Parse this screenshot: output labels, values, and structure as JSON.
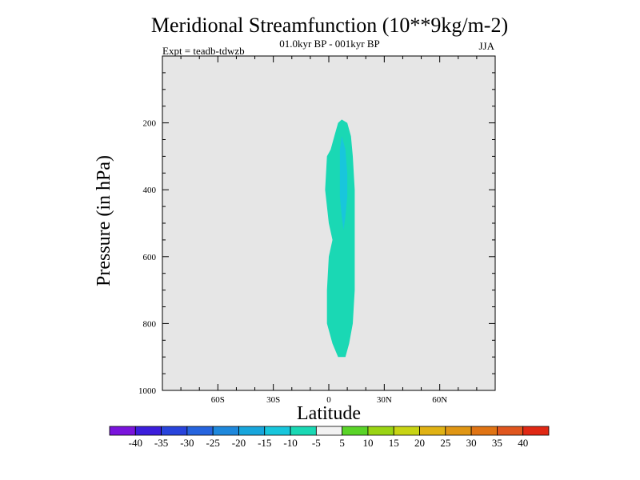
{
  "chart_data": {
    "type": "contour",
    "title": "Meridional Streamfunction (10**9kg/m-2)",
    "subtitle": "01.0kyr BP - 001kyr BP",
    "experiment": "Expt = teadb-tdwzb",
    "season": "JJA",
    "xlabel": "Latitude",
    "ylabel": "Pressure (in hPa)",
    "xlim": [
      -90,
      90
    ],
    "ylim": [
      0,
      1000
    ],
    "y_inverted": true,
    "x_ticks": [
      {
        "value": -60,
        "label": "60S"
      },
      {
        "value": -30,
        "label": "30S"
      },
      {
        "value": 0,
        "label": "0"
      },
      {
        "value": 30,
        "label": "30N"
      },
      {
        "value": 60,
        "label": "60N"
      }
    ],
    "y_ticks": [
      {
        "value": 200,
        "label": "200"
      },
      {
        "value": 400,
        "label": "400"
      },
      {
        "value": 600,
        "label": "600"
      },
      {
        "value": 800,
        "label": "800"
      },
      {
        "value": 1000,
        "label": "1000"
      }
    ],
    "background_color": "#e6e6e6",
    "regions": [
      {
        "name": "band-neg5-to-neg10",
        "level_range": [
          -10,
          -5
        ],
        "color": "#1ad8b4",
        "outline": [
          [
            7,
            190
          ],
          [
            10,
            200
          ],
          [
            12,
            240
          ],
          [
            13,
            300
          ],
          [
            14,
            400
          ],
          [
            14,
            500
          ],
          [
            14,
            600
          ],
          [
            14,
            700
          ],
          [
            13,
            800
          ],
          [
            11,
            860
          ],
          [
            9,
            900
          ],
          [
            5,
            900
          ],
          [
            2,
            860
          ],
          [
            -1,
            800
          ],
          [
            -1,
            700
          ],
          [
            0,
            600
          ],
          [
            2,
            550
          ],
          [
            0,
            500
          ],
          [
            -1,
            450
          ],
          [
            -2,
            400
          ],
          [
            -1,
            300
          ],
          [
            1,
            280
          ],
          [
            3,
            240
          ],
          [
            5,
            200
          ]
        ]
      },
      {
        "name": "band-neg10-to-neg15",
        "level_range": [
          -15,
          -10
        ],
        "color": "#18c6dc",
        "outline": [
          [
            7,
            240
          ],
          [
            9,
            280
          ],
          [
            10,
            350
          ],
          [
            10,
            420
          ],
          [
            9,
            480
          ],
          [
            8,
            520
          ],
          [
            7,
            480
          ],
          [
            6,
            420
          ],
          [
            6,
            350
          ],
          [
            6,
            280
          ]
        ]
      }
    ],
    "colorbar": {
      "levels": [
        "-40",
        "-35",
        "-30",
        "-25",
        "-20",
        "-15",
        "-10",
        "-5",
        "5",
        "10",
        "15",
        "20",
        "25",
        "30",
        "35",
        "40"
      ],
      "colors": [
        "#7a14dc",
        "#3c1edc",
        "#2844dc",
        "#2664de",
        "#1e88dc",
        "#18a6dc",
        "#18c6dc",
        "#1ad8b4",
        "#f2f2f2",
        "#5ad428",
        "#9ad414",
        "#c8d414",
        "#e0b214",
        "#e09614",
        "#e07414",
        "#e0561e",
        "#e02814"
      ]
    }
  }
}
